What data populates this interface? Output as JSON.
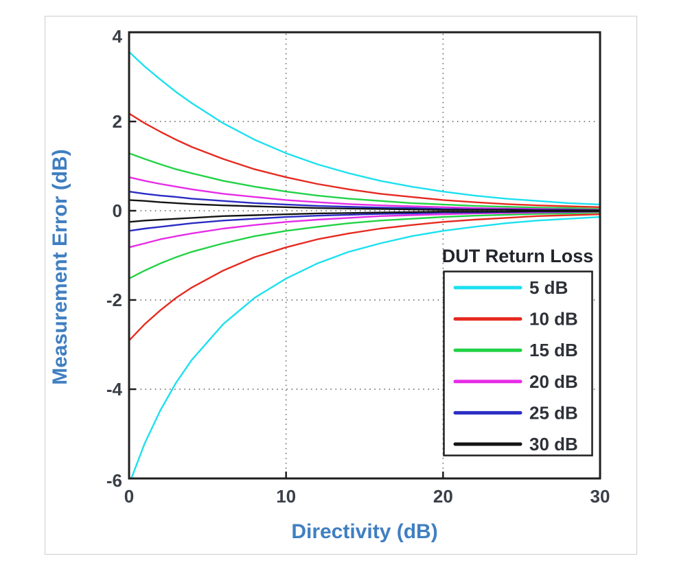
{
  "page": {
    "background_color": "#ffffff",
    "card_border_color": "#cccccc"
  },
  "chart_data": {
    "type": "line",
    "title": "",
    "xlabel": "Directivity (dB)",
    "ylabel": "Measurement Error (dB)",
    "xlim": [
      0,
      30
    ],
    "ylim": [
      -6,
      4
    ],
    "xticks": [
      0,
      10,
      20,
      30
    ],
    "yticks": [
      4,
      2,
      0,
      -2,
      -4,
      -6
    ],
    "xtick_labels": [
      "0",
      "10",
      "20",
      "30"
    ],
    "ytick_labels": [
      "4",
      "2",
      "0",
      "-2",
      "-4",
      "-6"
    ],
    "grid": {
      "style": "dotted",
      "color": "#4a4a4a",
      "x_lines": [
        10,
        20
      ],
      "y_lines": [
        2,
        0,
        -2,
        -4
      ]
    },
    "axis_color": "#1f1f1f",
    "legend": {
      "title": "DUT Return Loss",
      "position": "lower right"
    },
    "x": [
      0,
      1,
      2,
      3,
      4,
      6,
      8,
      10,
      12,
      14,
      16,
      18,
      20,
      22,
      24,
      26,
      28,
      30
    ],
    "series": [
      {
        "name": "5 dB",
        "color": "#1ce0ef",
        "upper": [
          3.56,
          3.23,
          2.94,
          2.66,
          2.41,
          1.96,
          1.59,
          1.29,
          1.04,
          0.84,
          0.67,
          0.54,
          0.43,
          0.34,
          0.27,
          0.22,
          0.17,
          0.14
        ],
        "lower": [
          -6.13,
          -5.21,
          -4.47,
          -3.85,
          -3.34,
          -2.54,
          -1.95,
          -1.52,
          -1.18,
          -0.92,
          -0.73,
          -0.57,
          -0.45,
          -0.36,
          -0.28,
          -0.22,
          -0.18,
          -0.14
        ]
      },
      {
        "name": "10 dB",
        "color": "#e52a20",
        "upper": [
          2.18,
          1.96,
          1.77,
          1.59,
          1.43,
          1.16,
          0.93,
          0.75,
          0.6,
          0.48,
          0.38,
          0.31,
          0.24,
          0.19,
          0.15,
          0.12,
          0.1,
          0.08
        ],
        "lower": [
          -2.91,
          -2.54,
          -2.23,
          -1.95,
          -1.72,
          -1.34,
          -1.04,
          -0.82,
          -0.64,
          -0.51,
          -0.4,
          -0.32,
          -0.25,
          -0.2,
          -0.16,
          -0.12,
          -0.1,
          -0.08
        ]
      },
      {
        "name": "15 dB",
        "color": "#22d246",
        "upper": [
          1.29,
          1.16,
          1.04,
          0.93,
          0.84,
          0.67,
          0.54,
          0.43,
          0.34,
          0.27,
          0.22,
          0.17,
          0.14,
          0.11,
          0.09,
          0.07,
          0.06,
          0.04
        ],
        "lower": [
          -1.52,
          -1.34,
          -1.18,
          -1.04,
          -0.92,
          -0.73,
          -0.57,
          -0.45,
          -0.36,
          -0.28,
          -0.22,
          -0.18,
          -0.14,
          -0.11,
          -0.09,
          -0.07,
          -0.06,
          -0.04
        ]
      },
      {
        "name": "20 dB",
        "color": "#e62ce6",
        "upper": [
          0.75,
          0.67,
          0.6,
          0.54,
          0.48,
          0.38,
          0.31,
          0.24,
          0.19,
          0.15,
          0.12,
          0.1,
          0.08,
          0.06,
          0.05,
          0.04,
          0.03,
          0.02
        ],
        "lower": [
          -0.82,
          -0.73,
          -0.64,
          -0.57,
          -0.51,
          -0.4,
          -0.32,
          -0.25,
          -0.2,
          -0.16,
          -0.12,
          -0.1,
          -0.08,
          -0.06,
          -0.05,
          -0.04,
          -0.03,
          -0.02
        ]
      },
      {
        "name": "25 dB",
        "color": "#2b2cc4",
        "upper": [
          0.43,
          0.38,
          0.34,
          0.31,
          0.27,
          0.22,
          0.17,
          0.14,
          0.11,
          0.09,
          0.07,
          0.06,
          0.04,
          0.03,
          0.03,
          0.02,
          0.02,
          0.01
        ],
        "lower": [
          -0.45,
          -0.4,
          -0.36,
          -0.32,
          -0.28,
          -0.22,
          -0.18,
          -0.14,
          -0.11,
          -0.09,
          -0.07,
          -0.06,
          -0.04,
          -0.04,
          -0.03,
          -0.02,
          -0.02,
          -0.01
        ]
      },
      {
        "name": "30 dB",
        "color": "#141414",
        "upper": [
          0.24,
          0.22,
          0.19,
          0.17,
          0.15,
          0.12,
          0.1,
          0.08,
          0.06,
          0.05,
          0.04,
          0.03,
          0.02,
          0.02,
          0.02,
          0.01,
          0.01,
          0.01
        ],
        "lower": [
          -0.25,
          -0.22,
          -0.2,
          -0.18,
          -0.16,
          -0.12,
          -0.1,
          -0.08,
          -0.06,
          -0.05,
          -0.04,
          -0.03,
          -0.02,
          -0.02,
          -0.02,
          -0.01,
          -0.01,
          -0.01
        ]
      }
    ]
  }
}
